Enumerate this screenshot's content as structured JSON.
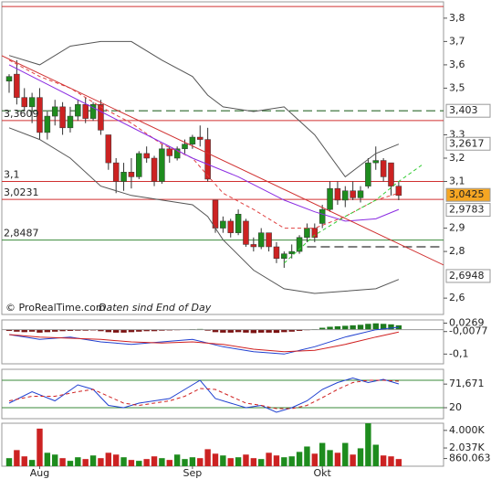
{
  "chart_data": [
    {
      "type": "candlestick",
      "categories": [
        null,
        null,
        null,
        null,
        "Aug",
        null,
        null,
        null,
        null,
        null,
        null,
        null,
        null,
        null,
        null,
        null,
        null,
        null,
        null,
        null,
        null,
        null,
        null,
        null,
        "Sep",
        null,
        null,
        null,
        null,
        null,
        null,
        null,
        null,
        null,
        null,
        null,
        null,
        null,
        null,
        null,
        null,
        "Okt",
        null,
        null,
        null,
        null,
        null,
        null,
        null,
        null,
        null,
        null
      ],
      "open": [
        3.53,
        3.56,
        3.46,
        3.42,
        3.46,
        3.31,
        3.38,
        3.42,
        3.33,
        3.38,
        3.43,
        3.37,
        3.43,
        3.3,
        3.18,
        3.1,
        3.14,
        3.12,
        3.22,
        3.2,
        3.1,
        3.24,
        3.2,
        3.24,
        3.26,
        3.29,
        3.28,
        3.02,
        2.9,
        2.93,
        2.88,
        2.93,
        2.83,
        2.82,
        2.88,
        2.82,
        2.77,
        2.79,
        2.8,
        2.86,
        2.9,
        2.92,
        2.98,
        3.07,
        3.02,
        3.06,
        3.03,
        3.08,
        3.18,
        3.19,
        3.18,
        3.08
      ],
      "high": [
        3.56,
        3.62,
        3.5,
        3.48,
        3.5,
        3.4,
        3.45,
        3.44,
        3.42,
        3.45,
        3.46,
        3.44,
        3.45,
        3.3,
        3.2,
        3.18,
        3.2,
        3.23,
        3.25,
        3.21,
        3.26,
        3.25,
        3.25,
        3.28,
        3.3,
        3.34,
        3.33,
        3.02,
        2.95,
        2.94,
        2.98,
        2.94,
        2.86,
        2.9,
        2.88,
        2.84,
        2.8,
        2.83,
        2.87,
        2.92,
        2.92,
        3.0,
        3.1,
        3.1,
        3.08,
        3.1,
        3.08,
        3.2,
        3.25,
        3.2,
        3.18,
        3.1
      ],
      "low": [
        3.48,
        3.43,
        3.4,
        3.35,
        3.28,
        3.28,
        3.34,
        3.3,
        3.31,
        3.36,
        3.35,
        3.36,
        3.3,
        3.15,
        3.05,
        3.06,
        3.07,
        3.11,
        3.18,
        3.08,
        3.09,
        3.18,
        3.19,
        3.22,
        3.24,
        3.25,
        3.1,
        2.88,
        2.88,
        2.86,
        2.87,
        2.82,
        2.8,
        2.81,
        2.8,
        2.75,
        2.73,
        2.77,
        2.79,
        2.84,
        2.84,
        2.9,
        2.97,
        3.0,
        2.99,
        3.02,
        3.01,
        3.07,
        3.15,
        3.1,
        3.04,
        3.02
      ],
      "close": [
        3.55,
        3.46,
        3.42,
        3.46,
        3.31,
        3.38,
        3.42,
        3.33,
        3.38,
        3.43,
        3.37,
        3.43,
        3.32,
        3.18,
        3.1,
        3.14,
        3.12,
        3.22,
        3.2,
        3.1,
        3.24,
        3.21,
        3.24,
        3.26,
        3.29,
        3.28,
        3.11,
        2.9,
        2.93,
        2.88,
        2.96,
        2.83,
        2.82,
        2.88,
        2.82,
        2.77,
        2.79,
        2.8,
        2.86,
        2.9,
        2.86,
        2.98,
        3.07,
        3.02,
        3.06,
        3.03,
        3.06,
        3.18,
        3.19,
        3.12,
        3.08,
        3.04
      ],
      "up_color": "#1e8c1e",
      "down_color": "#cc2222",
      "ylim": [
        2.53,
        3.87
      ],
      "yticks": [
        {
          "value": 3.8,
          "label": "3,8"
        },
        {
          "value": 3.7,
          "label": "3,7"
        },
        {
          "value": 3.6,
          "label": "3,6"
        },
        {
          "value": 3.5,
          "label": "3,5"
        },
        {
          "value": 3.3,
          "label": "3,3"
        },
        {
          "value": 3.2,
          "label": "3,2"
        },
        {
          "value": 3.1,
          "label": "3,1"
        },
        {
          "value": 2.9,
          "label": "2,9"
        },
        {
          "value": 2.8,
          "label": "2,8"
        },
        {
          "value": 2.6,
          "label": "2,6"
        }
      ],
      "hlines": [
        {
          "value": 3.85,
          "color": "#d03030"
        },
        {
          "value": 3.403,
          "color": "#2d6a2d",
          "dash": true
        },
        {
          "value": 3.3609,
          "label": "3,3609",
          "color": "#d03030"
        },
        {
          "value": 3.1,
          "label": "3,1",
          "color": "#d03030"
        },
        {
          "value": 3.0231,
          "label": "3,0231",
          "color": "#d03030"
        },
        {
          "value": 2.8487,
          "label": "2,8487",
          "color": "#3a8a3a"
        },
        {
          "value": 2.82,
          "color": "#333333",
          "dash": true,
          "from": 39
        }
      ],
      "overlays": [
        {
          "color": "#555555",
          "x": [
            0,
            4,
            8,
            12,
            16,
            20,
            24,
            26,
            28,
            32,
            36,
            40,
            44,
            48,
            51
          ],
          "values": [
            3.64,
            3.6,
            3.68,
            3.7,
            3.7,
            3.62,
            3.55,
            3.47,
            3.42,
            3.4,
            3.42,
            3.3,
            3.12,
            3.22,
            3.26
          ]
        },
        {
          "color": "#555555",
          "x": [
            0,
            4,
            8,
            12,
            16,
            20,
            24,
            26,
            28,
            32,
            36,
            40,
            44,
            48,
            51
          ],
          "values": [
            3.33,
            3.28,
            3.2,
            3.08,
            3.04,
            3.02,
            3.0,
            2.95,
            2.85,
            2.72,
            2.64,
            2.62,
            2.63,
            2.64,
            2.68
          ]
        },
        {
          "color": "#e04040",
          "dash": true,
          "x": [
            0,
            4,
            8,
            12,
            16,
            20,
            24,
            28,
            32,
            36,
            40,
            44,
            48,
            51
          ],
          "values": [
            3.62,
            3.55,
            3.5,
            3.42,
            3.35,
            3.26,
            3.2,
            3.05,
            2.98,
            2.9,
            2.9,
            2.95,
            3.02,
            3.05
          ]
        },
        {
          "color": "#8a2be2",
          "x": [
            0,
            6,
            12,
            18,
            24,
            30,
            36,
            40,
            44,
            48,
            51
          ],
          "values": [
            3.6,
            3.5,
            3.4,
            3.3,
            3.2,
            3.12,
            3.02,
            2.97,
            2.93,
            2.94,
            2.98
          ]
        },
        {
          "color": "#33cc33",
          "dash": true,
          "x": [
            36,
            40,
            44,
            48,
            51,
            54
          ],
          "values": [
            2.75,
            2.87,
            2.95,
            3.02,
            3.1,
            3.17
          ]
        },
        {
          "color": "#d03030",
          "x": [
            -1,
            57
          ],
          "values": [
            3.64,
            2.74
          ]
        }
      ],
      "last_labels": [
        {
          "value": 3.403,
          "label": "3,403",
          "color": "#2d6a2d"
        },
        {
          "value": 3.2617,
          "label": "3,2617",
          "color": "#666666"
        },
        {
          "value": 3.0425,
          "label": "3,0425",
          "color": "#000000",
          "fill": "#f5a623"
        },
        {
          "value": 2.9783,
          "label": "2,9783",
          "color": "#3a50c0"
        },
        {
          "value": 2.6948,
          "label": "2,6948",
          "color": "#444444"
        }
      ],
      "source": "© ProRealTime.com",
      "note": "Daten sind End of Day"
    },
    {
      "type": "bar",
      "values": [
        -0.005,
        -0.008,
        -0.01,
        -0.008,
        -0.012,
        -0.01,
        -0.008,
        -0.006,
        -0.005,
        -0.004,
        -0.004,
        -0.003,
        -0.006,
        -0.01,
        -0.012,
        -0.012,
        -0.01,
        -0.008,
        -0.006,
        -0.006,
        -0.004,
        -0.003,
        -0.002,
        -0.001,
        0.002,
        0.003,
        -0.004,
        -0.01,
        -0.012,
        -0.012,
        -0.01,
        -0.012,
        -0.014,
        -0.012,
        -0.012,
        -0.013,
        -0.01,
        -0.008,
        -0.005,
        -0.002,
        0.002,
        0.008,
        0.012,
        0.014,
        0.016,
        0.018,
        0.02,
        0.024,
        0.026,
        0.024,
        0.022,
        0.018
      ],
      "up_color": "#1e7a1e",
      "down_color": "#7a1010",
      "ylim": [
        -0.14,
        0.04
      ],
      "yticks": [
        {
          "value": 0.0269,
          "label": "0,0269"
        },
        {
          "value": -0.0077,
          "label": "-0,0077"
        },
        {
          "value": -0.1,
          "label": "-0,1"
        }
      ],
      "overlays": [
        {
          "color": "#2040d0",
          "x": [
            0,
            4,
            8,
            12,
            16,
            20,
            24,
            28,
            32,
            36,
            40,
            44,
            48,
            51
          ],
          "values": [
            -0.02,
            -0.04,
            -0.03,
            -0.05,
            -0.06,
            -0.05,
            -0.04,
            -0.07,
            -0.09,
            -0.1,
            -0.07,
            -0.03,
            0.0,
            0.01
          ]
        },
        {
          "color": "#d02020",
          "x": [
            0,
            4,
            8,
            12,
            16,
            20,
            24,
            28,
            32,
            36,
            40,
            44,
            48,
            51
          ],
          "values": [
            -0.02,
            -0.03,
            -0.035,
            -0.04,
            -0.05,
            -0.055,
            -0.05,
            -0.06,
            -0.08,
            -0.09,
            -0.085,
            -0.06,
            -0.03,
            -0.01
          ]
        }
      ]
    },
    {
      "type": "line",
      "ylim": [
        -4,
        104
      ],
      "yticks": [
        {
          "value": 71.671,
          "label": "71,671"
        },
        20
      ],
      "hlines": [
        {
          "value": 80,
          "color": "#3a8a3a"
        },
        {
          "value": 20,
          "color": "#3a8a3a"
        }
      ],
      "overlays": [
        {
          "color": "#2040d0",
          "x": [
            0,
            3,
            6,
            9,
            11,
            13,
            15,
            17,
            19,
            21,
            23,
            25,
            27,
            29,
            31,
            33,
            35,
            37,
            39,
            41,
            43,
            45,
            47,
            49,
            51
          ],
          "values": [
            30,
            55,
            35,
            70,
            60,
            25,
            20,
            30,
            35,
            40,
            60,
            80,
            40,
            30,
            20,
            25,
            10,
            20,
            35,
            60,
            75,
            85,
            75,
            82,
            72
          ]
        },
        {
          "color": "#d02020",
          "dash": true,
          "x": [
            0,
            3,
            6,
            9,
            11,
            13,
            15,
            17,
            19,
            21,
            23,
            25,
            27,
            29,
            31,
            33,
            35,
            37,
            39,
            41,
            43,
            45,
            47,
            49,
            51
          ],
          "values": [
            35,
            45,
            45,
            55,
            60,
            45,
            30,
            25,
            30,
            35,
            45,
            62,
            60,
            45,
            30,
            25,
            18,
            18,
            25,
            42,
            60,
            75,
            80,
            80,
            78
          ]
        }
      ]
    },
    {
      "type": "bar",
      "values": [
        900,
        1800,
        1100,
        700,
        4200,
        1500,
        1300,
        900,
        600,
        1000,
        800,
        1200,
        900,
        1500,
        1300,
        1000,
        700,
        600,
        800,
        1100,
        900,
        700,
        1300,
        800,
        1000,
        900,
        1900,
        1400,
        1200,
        900,
        1000,
        1300,
        900,
        800,
        1500,
        1200,
        1000,
        1100,
        1600,
        2200,
        1400,
        2600,
        1800,
        1500,
        2600,
        1300,
        2000,
        5000,
        2400,
        1200,
        1100,
        800
      ],
      "up_color": "#1e8c1e",
      "down_color": "#cc2222",
      "ylim": [
        0,
        4800
      ],
      "yticks": [
        {
          "value": 4000,
          "label": "4.000K"
        },
        {
          "value": 2037,
          "label": "2.037K"
        },
        {
          "value": 860.063,
          "label": "860.063"
        }
      ]
    }
  ]
}
